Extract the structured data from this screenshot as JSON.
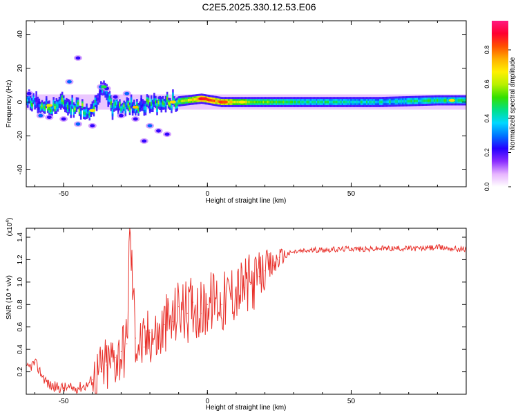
{
  "title": "C2E5.2025.330.12.53.E06",
  "chart_data": [
    {
      "type": "heatmap",
      "xlabel": "Height of straight line (km)",
      "ylabel": "Frequency (Hz)",
      "xlim": [
        -63,
        90
      ],
      "ylim": [
        -50,
        48
      ],
      "xticks": [
        -50,
        0,
        50
      ],
      "xtick_labels": [
        "-50",
        "0",
        "50"
      ],
      "yticks": [
        -40,
        -20,
        0,
        20,
        40
      ],
      "ytick_labels": [
        "-40",
        "-20",
        "0",
        "20",
        "40"
      ],
      "colorbar": {
        "label": "Normalized spectral amplitude",
        "range": [
          0,
          0.97
        ],
        "ticks": [
          0,
          0.2,
          0.4,
          0.6,
          0.8
        ],
        "tick_labels": [
          "0.0",
          "0.2",
          "0.4",
          "0.6",
          "0.8"
        ],
        "colors": [
          "#ffffff",
          "#e7b4ff",
          "#8a2cff",
          "#2400ff",
          "#0074ff",
          "#00d8ff",
          "#00e08a",
          "#33e000",
          "#b8f000",
          "#fff000",
          "#ffb000",
          "#ff5000",
          "#ff0030",
          "#ff1a80"
        ]
      },
      "description_data": {
        "band_center_hz": 0,
        "band_halfwidth_hz": 3,
        "blobs": [
          {
            "x": -60,
            "y": -1,
            "w": 4,
            "a": 0.35
          },
          {
            "x": -55,
            "y": -3,
            "w": 3,
            "a": 0.5
          },
          {
            "x": -50,
            "y": -1,
            "w": 4,
            "a": 0.42
          },
          {
            "x": -45,
            "y": -3,
            "w": 3,
            "a": 0.5
          },
          {
            "x": -40,
            "y": -5,
            "w": 3,
            "a": 0.45
          },
          {
            "x": -37,
            "y": 9,
            "w": 2,
            "a": 0.3
          },
          {
            "x": -33,
            "y": -3,
            "w": 3,
            "a": 0.4
          },
          {
            "x": -27,
            "y": -2,
            "w": 3,
            "a": 0.45
          },
          {
            "x": -22,
            "y": -2,
            "w": 3,
            "a": 0.4
          },
          {
            "x": -12,
            "y": 0,
            "w": 3,
            "a": 0.5
          },
          {
            "x": -2,
            "y": 2,
            "w": 3,
            "a": 0.85
          },
          {
            "x": 5,
            "y": 0,
            "w": 3,
            "a": 0.8
          },
          {
            "x": 10,
            "y": 0,
            "w": 3,
            "a": 0.7
          },
          {
            "x": 20,
            "y": 0,
            "w": 3,
            "a": 0.55
          },
          {
            "x": 40,
            "y": 0,
            "w": 4,
            "a": 0.45
          },
          {
            "x": 60,
            "y": 0,
            "w": 4,
            "a": 0.42
          },
          {
            "x": 80,
            "y": 1,
            "w": 4,
            "a": 0.48
          }
        ]
      }
    },
    {
      "type": "line",
      "xlabel": "Height of straight line (km)",
      "ylabel": "SNR (10 * v/v)",
      "multiplier_label": "(x10",
      "multiplier_exp": "4",
      "xlim": [
        -63,
        90
      ],
      "ylim": [
        0,
        1.48
      ],
      "xticks": [
        -50,
        0,
        50
      ],
      "xtick_labels": [
        "-50",
        "0",
        "50"
      ],
      "yticks": [
        0.2,
        0.4,
        0.6,
        0.8,
        1.0,
        1.2,
        1.4
      ],
      "ytick_labels": [
        "0.2",
        "0.4",
        "0.6",
        "0.8",
        "1.0",
        "1.2",
        "1.4"
      ],
      "line_color": "#e8302a",
      "series": [
        {
          "name": "SNR",
          "x": [
            -63,
            -60,
            -57,
            -55,
            -52,
            -50,
            -47,
            -45,
            -42,
            -40,
            -37,
            -35,
            -32,
            -30,
            -28,
            -27,
            -25,
            -22,
            -20,
            -17,
            -15,
            -12,
            -10,
            -7,
            -5,
            -2,
            0,
            3,
            5,
            8,
            10,
            13,
            15,
            18,
            20,
            23,
            25,
            28,
            30,
            35,
            40,
            45,
            50,
            55,
            60,
            65,
            70,
            75,
            80,
            85,
            90
          ],
          "values": [
            0.22,
            0.28,
            0.15,
            0.08,
            0.06,
            0.06,
            0.05,
            0.06,
            0.08,
            0.13,
            0.2,
            0.26,
            0.33,
            0.38,
            0.45,
            1.48,
            0.5,
            0.42,
            0.55,
            0.5,
            0.62,
            0.65,
            0.78,
            0.72,
            0.82,
            0.72,
            0.8,
            0.86,
            0.8,
            0.9,
            0.92,
            0.95,
            0.98,
            1.05,
            1.1,
            1.15,
            1.22,
            1.25,
            1.27,
            1.28,
            1.29,
            1.29,
            1.3,
            1.29,
            1.3,
            1.3,
            1.3,
            1.3,
            1.31,
            1.3,
            1.29
          ]
        }
      ]
    }
  ]
}
